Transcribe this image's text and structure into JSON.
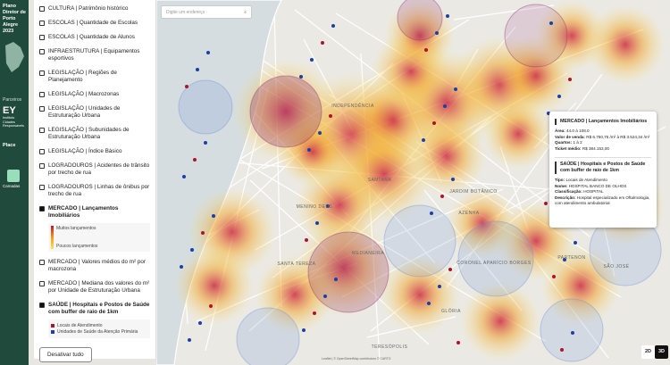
{
  "sidebar": {
    "title": "Plano Diretor de Porto Alegre 2023",
    "partners_label": "Parceiros",
    "partner_1": "EY",
    "partner_2": "Instituto Cidades Responsáveis",
    "partner_3": "Place",
    "layers_button": "Camadas"
  },
  "layers": {
    "items": [
      {
        "label": "CULTURA | Patrimônio histórico",
        "checked": false
      },
      {
        "label": "ESCOLAS | Quantidade de Escolas",
        "checked": false
      },
      {
        "label": "ESCOLAS | Quantidade de Alunos",
        "checked": false
      },
      {
        "label": "INFRAESTRUTURA | Equipamentos esportivos",
        "checked": false
      },
      {
        "label": "LEGISLAÇÃO | Regiões de Planejamento",
        "checked": false
      },
      {
        "label": "LEGISLAÇÃO | Macrozonas",
        "checked": false
      },
      {
        "label": "LEGISLAÇÃO | Unidades de Estruturação Urbana",
        "checked": false
      },
      {
        "label": "LEGISLAÇÃO | Subunidades de Estruturação Urbana",
        "checked": false
      },
      {
        "label": "LEGISLAÇÃO | Índice Básico",
        "checked": false
      },
      {
        "label": "LOGRADOUROS | Acidentes de trânsito por trecho de rua",
        "checked": false
      },
      {
        "label": "LOGRADOUROS | Linhas de ônibus por trecho de rua",
        "checked": false
      },
      {
        "label": "MERCADO | Lançamentos Imobiliários",
        "checked": true,
        "legend": {
          "kind": "gradient",
          "high": "Muitos lançamentos",
          "low": "Poucos lançamentos"
        }
      },
      {
        "label": "MERCADO | Valores médios do m² por macrozona",
        "checked": false
      },
      {
        "label": "MERCADO | Mediana dos valores do m² por Unidade de Estruturação Urbana",
        "checked": false
      },
      {
        "label": "SAÚDE | Hospitais e Postos de Saúde com buffer de raio de 1km",
        "checked": true,
        "legend": {
          "kind": "points",
          "entries": [
            {
              "label": "Locais de Atendimento",
              "color": "#b0122a"
            },
            {
              "label": "Unidades de Saúde da Atenção Primária",
              "color": "#1b3fa8"
            }
          ]
        }
      }
    ],
    "clear_button": "Desativar tudo"
  },
  "search": {
    "placeholder": "Digite um endereço"
  },
  "map": {
    "labels": [
      "INDEPENDÊNCIA",
      "MENINO DEUS",
      "SANTANA",
      "AZENHA",
      "JARDIM BOTÂNICO",
      "SANTA TEREZA",
      "MEDIANEIRA",
      "CORONEL APARÍCIO BORGES",
      "GLÓRIA",
      "TERESÓPOLIS",
      "PARTENON",
      "SÃO JOSÉ"
    ],
    "attribution": "Leaflet | © OpenStreetMap contributors © CARTO"
  },
  "popup": {
    "section_1": {
      "title": "MERCADO | Lançamentos Imobiliários",
      "fields": [
        {
          "label": "Área:",
          "value": "44.0 à 108.0"
        },
        {
          "label": "Valor de venda:",
          "value": "R$ 6.750,75 /m² à R$ 3.524,34 /m²"
        },
        {
          "label": "Quartos:",
          "value": "1 à 2"
        },
        {
          "label": "Ticket médio:",
          "value": "R$ 384.153,00"
        }
      ]
    },
    "section_2": {
      "title": "SAÚDE | Hospitais e Postos de Saúde com buffer de raio de 1km",
      "fields": [
        {
          "label": "Tipo:",
          "value": "Locais de Atendimento"
        },
        {
          "label": "Nome:",
          "value": "HOSPITAL BANCO DE OLHOS"
        },
        {
          "label": "Classificação:",
          "value": "HOSPITAL"
        },
        {
          "label": "Descrição:",
          "value": "Hospital especializado em Oftalmologia, com atendimento ambulatorial"
        }
      ]
    }
  },
  "view_buttons": [
    "2D",
    "3D"
  ]
}
